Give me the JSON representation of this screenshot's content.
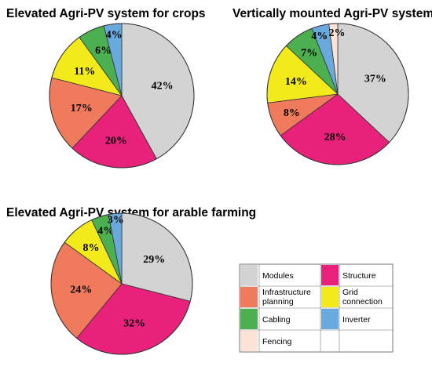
{
  "chart_data": [
    {
      "type": "pie",
      "title": "Elevated Agri-PV system for crops",
      "slices": [
        {
          "category": "Modules",
          "value": 42,
          "label": "42%"
        },
        {
          "category": "Structure",
          "value": 20,
          "label": "20%"
        },
        {
          "category": "Infrastructure planning",
          "value": 17,
          "label": "17%"
        },
        {
          "category": "Grid connection",
          "value": 11,
          "label": "11%"
        },
        {
          "category": "Cabling",
          "value": 6,
          "label": "6%"
        },
        {
          "category": "Inverter",
          "value": 4,
          "label": "4%"
        }
      ]
    },
    {
      "type": "pie",
      "title": "Vertically mounted Agri-PV system",
      "slices": [
        {
          "category": "Modules",
          "value": 37,
          "label": "37%"
        },
        {
          "category": "Structure",
          "value": 28,
          "label": "28%"
        },
        {
          "category": "Infrastructure planning",
          "value": 8,
          "label": "8%"
        },
        {
          "category": "Grid connection",
          "value": 14,
          "label": "14%"
        },
        {
          "category": "Cabling",
          "value": 7,
          "label": "7%"
        },
        {
          "category": "Inverter",
          "value": 4,
          "label": "4%"
        },
        {
          "category": "Fencing",
          "value": 2,
          "label": "2%"
        }
      ]
    },
    {
      "type": "pie",
      "title": "Elevated Agri-PV system for arable farming",
      "slices": [
        {
          "category": "Modules",
          "value": 29,
          "label": "29%"
        },
        {
          "category": "Structure",
          "value": 32,
          "label": "32%"
        },
        {
          "category": "Infrastructure planning",
          "value": 24,
          "label": "24%"
        },
        {
          "category": "Grid connection",
          "value": 8,
          "label": "8%"
        },
        {
          "category": "Cabling",
          "value": 4,
          "label": "4%"
        },
        {
          "category": "Inverter",
          "value": 3,
          "label": "3%"
        }
      ]
    }
  ],
  "legend": {
    "placement": "bottom-right",
    "entries": [
      {
        "category": "Modules",
        "label": "Modules",
        "color": "#d3d3d3"
      },
      {
        "category": "Structure",
        "label": "Structure",
        "color": "#e8217a"
      },
      {
        "category": "Infrastructure planning",
        "label": "Infrastructure planning",
        "color": "#ef7b5c"
      },
      {
        "category": "Grid connection",
        "label": "Grid connection",
        "color": "#f2ea1a"
      },
      {
        "category": "Cabling",
        "label": "Cabling",
        "color": "#4caf50"
      },
      {
        "category": "Inverter",
        "label": "Inverter",
        "color": "#6aa9de"
      },
      {
        "category": "Fencing",
        "label": "Fencing",
        "color": "#fbe3d6"
      }
    ]
  }
}
